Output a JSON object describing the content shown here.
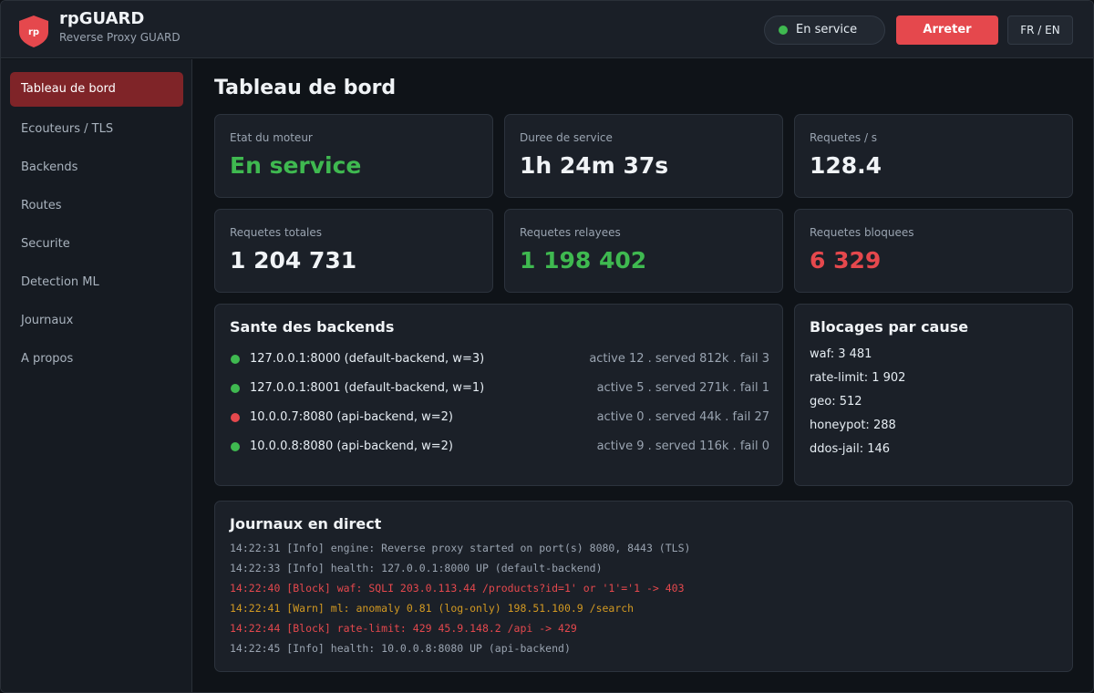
{
  "header": {
    "logo": "rp",
    "title": "rpGUARD",
    "subtitle": "Reverse Proxy GUARD",
    "status": "En service",
    "stop_button": "Arreter",
    "language": "FR / EN"
  },
  "sidebar": {
    "items": [
      "Tableau de bord",
      "Ecouteurs / TLS",
      "Backends",
      "Routes",
      "Securite",
      "Detection ML",
      "Journaux",
      "A propos"
    ]
  },
  "main": {
    "title": "Tableau de bord",
    "cards": [
      {
        "label": "Etat du moteur",
        "value": "En service"
      },
      {
        "label": "Duree de service",
        "value": "1h 24m 37s"
      },
      {
        "label": "Requetes / s",
        "value": "128.4"
      },
      {
        "label": "Requetes totales",
        "value": "1 204 731"
      },
      {
        "label": "Requetes relayees",
        "value": "1 198 402"
      },
      {
        "label": "Requetes bloquees",
        "value": "6 329"
      }
    ],
    "backends": {
      "title": "Sante des backends",
      "rows": [
        {
          "address": "127.0.0.1:8000 (default-backend, w=3)",
          "stats": "active 12 . served 812k . fail 3"
        },
        {
          "address": "127.0.0.1:8001 (default-backend, w=1)",
          "stats": "active 5 . served 271k . fail 1"
        },
        {
          "address": "10.0.0.7:8080 (api-backend, w=2)",
          "stats": "active 0 . served 44k . fail 27"
        },
        {
          "address": "10.0.0.8:8080 (api-backend, w=2)",
          "stats": "active 9 . served 116k . fail 0"
        }
      ]
    },
    "blocks": {
      "title": "Blocages par cause",
      "items": [
        "waf: 3 481",
        "rate-limit: 1 902",
        "geo: 512",
        "honeypot: 288",
        "ddos-jail: 146"
      ]
    },
    "logs": {
      "title": "Journaux en direct",
      "lines": [
        "14:22:31 [Info] engine: Reverse proxy started on port(s) 8080, 8443 (TLS)",
        "14:22:33 [Info] health: 127.0.0.1:8000 UP (default-backend)",
        "14:22:40 [Block] waf: SQLI 203.0.113.44 /products?id=1' or '1'='1 -> 403",
        "14:22:41 [Warn] ml: anomaly 0.81 (log-only) 198.51.100.9 /search",
        "14:22:44 [Block] rate-limit: 429 45.9.148.2 /api -> 429",
        "14:22:45 [Info] health: 10.0.0.8:8080 UP (api-backend)"
      ]
    }
  }
}
